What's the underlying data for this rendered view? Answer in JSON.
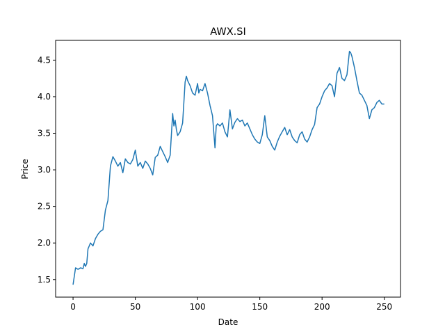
{
  "chart_data": {
    "type": "line",
    "title": "AWX.SI",
    "xlabel": "Date",
    "ylabel": "Price",
    "xlim": [
      -14,
      263
    ],
    "ylim": [
      1.26,
      4.77
    ],
    "xticks": [
      0,
      50,
      100,
      150,
      200,
      250
    ],
    "yticks": [
      1.5,
      2.0,
      2.5,
      3.0,
      3.5,
      4.0,
      4.5
    ],
    "grid": false,
    "series": [
      {
        "name": "",
        "color": "#1f77b4",
        "x": [
          0,
          2,
          4,
          6,
          8,
          9,
          10,
          11,
          12,
          13,
          14,
          16,
          18,
          20,
          22,
          24,
          26,
          28,
          30,
          32,
          34,
          36,
          38,
          40,
          42,
          44,
          46,
          48,
          50,
          52,
          54,
          56,
          58,
          60,
          62,
          64,
          66,
          68,
          70,
          72,
          74,
          76,
          78,
          80,
          81,
          82,
          83,
          84,
          86,
          88,
          90,
          91,
          92,
          94,
          96,
          98,
          100,
          101,
          102,
          104,
          106,
          108,
          110,
          112,
          114,
          115,
          116,
          118,
          120,
          122,
          124,
          126,
          128,
          130,
          132,
          134,
          136,
          138,
          140,
          142,
          144,
          146,
          148,
          150,
          152,
          154,
          156,
          158,
          160,
          162,
          164,
          166,
          168,
          170,
          172,
          174,
          176,
          178,
          180,
          182,
          184,
          186,
          188,
          190,
          192,
          194,
          196,
          198,
          200,
          202,
          204,
          206,
          208,
          210,
          212,
          214,
          216,
          218,
          220,
          222,
          223,
          224,
          226,
          228,
          230,
          232,
          234,
          236,
          238,
          240,
          242,
          244,
          246,
          248,
          250
        ],
        "y": [
          1.43,
          1.66,
          1.64,
          1.66,
          1.65,
          1.72,
          1.68,
          1.72,
          1.92,
          1.96,
          2.0,
          1.96,
          2.06,
          2.12,
          2.16,
          2.18,
          2.45,
          2.58,
          3.05,
          3.18,
          3.12,
          3.05,
          3.1,
          2.96,
          3.15,
          3.1,
          3.08,
          3.14,
          3.27,
          3.05,
          3.1,
          3.02,
          3.12,
          3.08,
          3.02,
          2.93,
          3.17,
          3.2,
          3.32,
          3.25,
          3.18,
          3.1,
          3.2,
          3.77,
          3.6,
          3.68,
          3.55,
          3.47,
          3.52,
          3.64,
          4.2,
          4.28,
          4.22,
          4.15,
          4.05,
          4.02,
          4.18,
          4.05,
          4.1,
          4.08,
          4.18,
          4.05,
          3.88,
          3.74,
          3.3,
          3.6,
          3.63,
          3.6,
          3.64,
          3.52,
          3.45,
          3.82,
          3.56,
          3.65,
          3.7,
          3.66,
          3.68,
          3.6,
          3.64,
          3.56,
          3.48,
          3.42,
          3.38,
          3.36,
          3.48,
          3.74,
          3.45,
          3.4,
          3.32,
          3.27,
          3.38,
          3.46,
          3.52,
          3.58,
          3.48,
          3.55,
          3.45,
          3.4,
          3.37,
          3.48,
          3.52,
          3.42,
          3.38,
          3.45,
          3.55,
          3.62,
          3.85,
          3.9,
          4.0,
          4.08,
          4.12,
          4.18,
          4.15,
          4.0,
          4.32,
          4.4,
          4.25,
          4.22,
          4.3,
          4.62,
          4.6,
          4.55,
          4.4,
          4.22,
          4.05,
          4.02,
          3.95,
          3.88,
          3.7,
          3.82,
          3.85,
          3.92,
          3.95,
          3.9,
          3.9
        ]
      }
    ]
  }
}
